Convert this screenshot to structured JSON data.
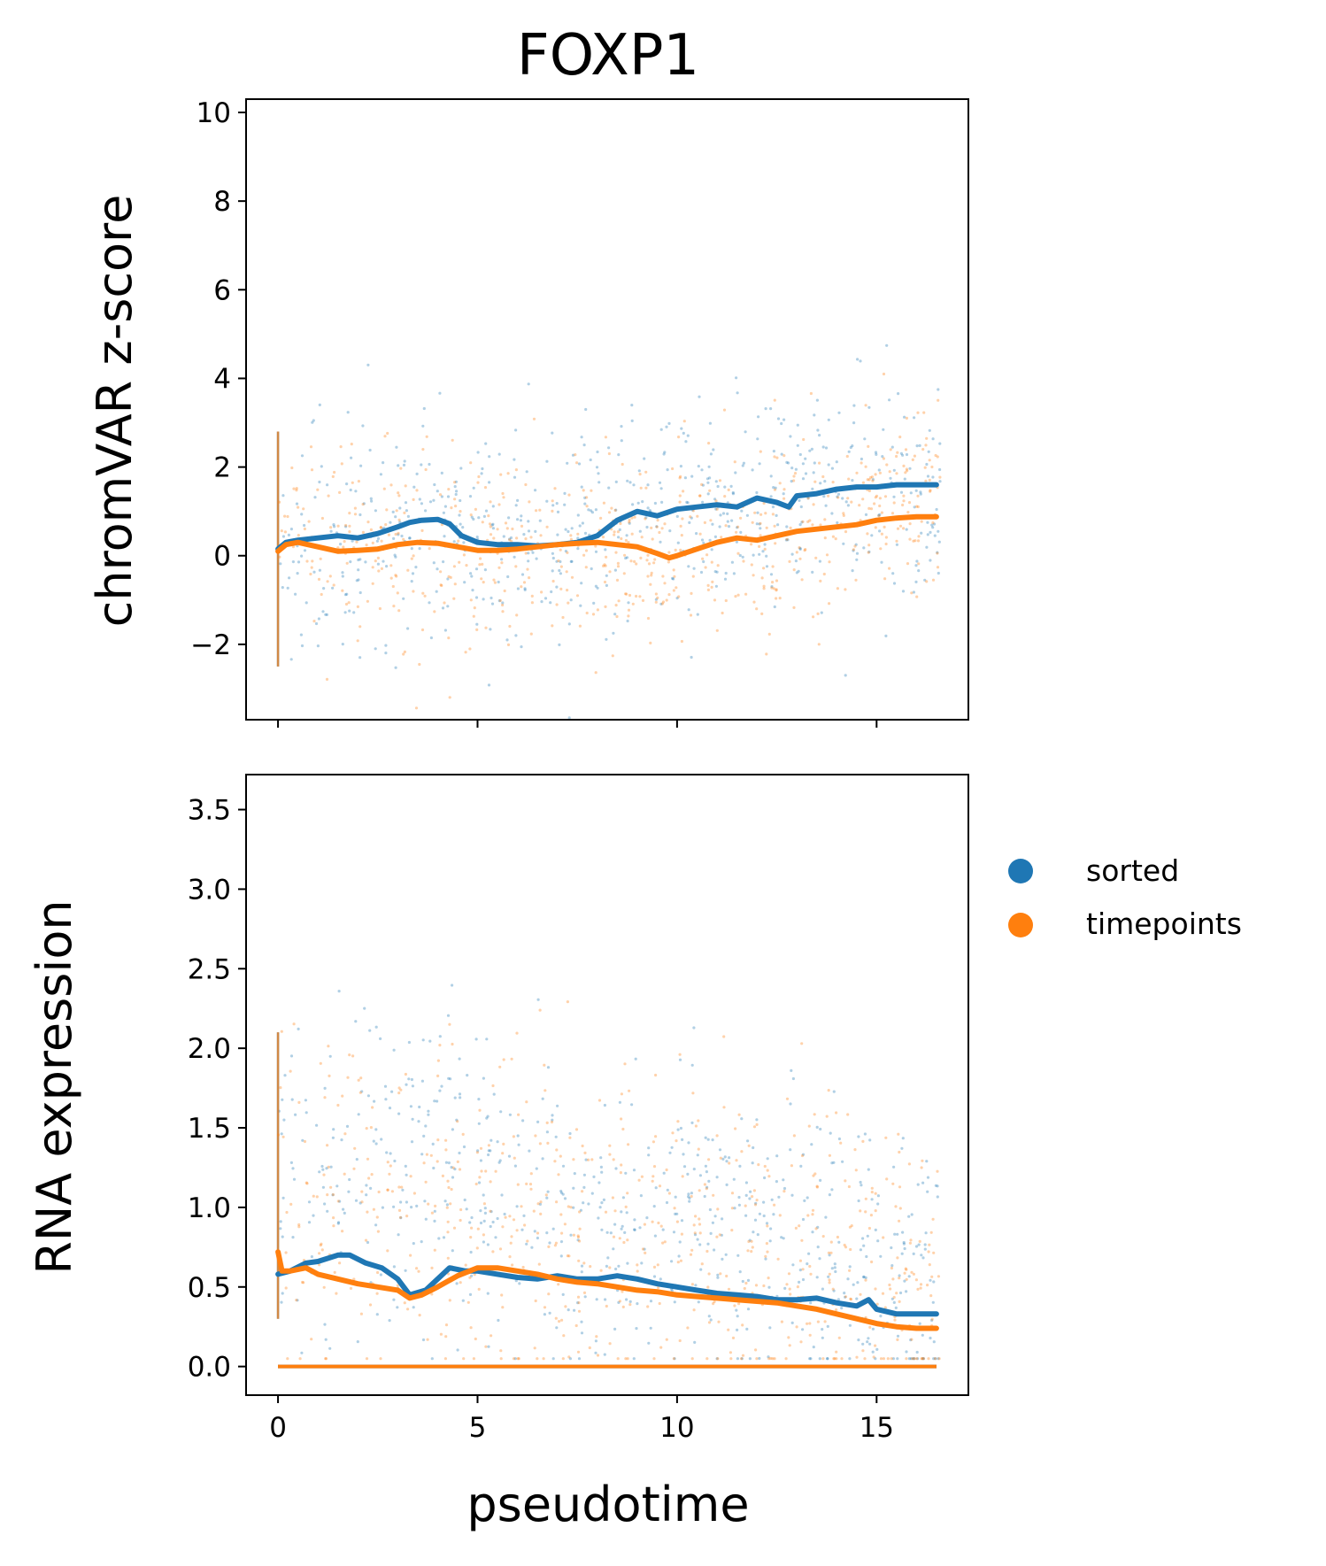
{
  "colors": {
    "sorted": "#1f77b4",
    "timepoints": "#ff7f0e"
  },
  "chart_data": [
    {
      "type": "scatter",
      "title": "FOXP1",
      "xlabel": "",
      "ylabel": "chromVAR z-score",
      "xlim": [
        -0.8,
        17.3
      ],
      "ylim": [
        -3.7,
        10.3
      ],
      "xticks": [
        0,
        5,
        10,
        15
      ],
      "xtick_labels_visible": false,
      "yticks": [
        -2,
        0,
        2,
        4,
        6,
        8,
        10
      ],
      "ytick_labels": [
        "−2",
        "0",
        "2",
        "4",
        "6",
        "8",
        "10"
      ],
      "series": [
        {
          "name": "sorted",
          "color": "#1f77b4",
          "scatter_trend": [
            [
              0,
              0.2
            ],
            [
              1,
              0.5
            ],
            [
              2,
              0.3
            ],
            [
              3,
              0.5
            ],
            [
              4,
              0.6
            ],
            [
              5,
              0.4
            ],
            [
              6,
              0.3
            ],
            [
              7,
              0.3
            ],
            [
              8,
              0.6
            ],
            [
              9,
              0.9
            ],
            [
              10,
              1.0
            ],
            [
              11,
              1.1
            ],
            [
              12,
              1.2
            ],
            [
              13,
              1.4
            ],
            [
              14,
              1.5
            ],
            [
              15,
              1.5
            ],
            [
              16.5,
              1.5
            ]
          ],
          "scatter_spread": 1.2,
          "trend_line": {
            "x": [
              0,
              0.2,
              0.5,
              1,
              1.5,
              2,
              2.5,
              3,
              3.3,
              3.6,
              4,
              4.3,
              4.6,
              5,
              5.5,
              6,
              6.5,
              7,
              7.5,
              8,
              8.5,
              9,
              9.5,
              10,
              10.5,
              11,
              11.5,
              12,
              12.5,
              12.8,
              13,
              13.5,
              14,
              14.5,
              15,
              15.5,
              16,
              16.5
            ],
            "y": [
              0.15,
              0.3,
              0.35,
              0.4,
              0.45,
              0.4,
              0.5,
              0.65,
              0.75,
              0.8,
              0.82,
              0.72,
              0.45,
              0.3,
              0.25,
              0.25,
              0.22,
              0.25,
              0.3,
              0.45,
              0.8,
              1.0,
              0.9,
              1.05,
              1.1,
              1.15,
              1.1,
              1.3,
              1.2,
              1.1,
              1.35,
              1.4,
              1.5,
              1.55,
              1.55,
              1.6,
              1.6,
              1.6
            ]
          }
        },
        {
          "name": "timepoints",
          "color": "#ff7f0e",
          "scatter_trend": [
            [
              0,
              0.2
            ],
            [
              1,
              0.2
            ],
            [
              2,
              0.1
            ],
            [
              3,
              0.2
            ],
            [
              4,
              0.2
            ],
            [
              5,
              0.1
            ],
            [
              6,
              0.2
            ],
            [
              7,
              0.2
            ],
            [
              8,
              0.2
            ],
            [
              9,
              0.1
            ],
            [
              10,
              0.1
            ],
            [
              11,
              0.3
            ],
            [
              12,
              0.4
            ],
            [
              13,
              0.5
            ],
            [
              14,
              0.7
            ],
            [
              15,
              0.9
            ],
            [
              16.5,
              0.9
            ]
          ],
          "scatter_spread": 1.1,
          "trend_line": {
            "x": [
              0,
              0.2,
              0.5,
              1,
              1.5,
              2,
              2.5,
              3,
              3.5,
              4,
              4.5,
              5,
              5.5,
              6,
              6.5,
              7,
              7.5,
              8,
              8.5,
              9,
              9.5,
              9.8,
              10,
              10.5,
              11,
              11.5,
              12,
              12.5,
              13,
              13.5,
              14,
              14.5,
              15,
              15.5,
              16,
              16.5
            ],
            "y": [
              0.1,
              0.25,
              0.3,
              0.2,
              0.1,
              0.12,
              0.15,
              0.25,
              0.3,
              0.28,
              0.2,
              0.12,
              0.12,
              0.15,
              0.2,
              0.25,
              0.28,
              0.3,
              0.25,
              0.2,
              0.05,
              -0.05,
              0.0,
              0.15,
              0.3,
              0.4,
              0.35,
              0.45,
              0.55,
              0.6,
              0.65,
              0.7,
              0.8,
              0.85,
              0.88,
              0.88
            ]
          }
        }
      ]
    },
    {
      "type": "scatter",
      "title": "",
      "xlabel": "pseudotime",
      "ylabel": "RNA expression",
      "xlim": [
        -0.8,
        17.3
      ],
      "ylim": [
        -0.18,
        3.72
      ],
      "xticks": [
        0,
        5,
        10,
        15
      ],
      "xtick_labels": [
        "0",
        "5",
        "10",
        "15"
      ],
      "yticks": [
        0.0,
        0.5,
        1.0,
        1.5,
        2.0,
        2.5,
        3.0,
        3.5
      ],
      "ytick_labels": [
        "0.0",
        "0.5",
        "1.0",
        "1.5",
        "2.0",
        "2.5",
        "3.0",
        "3.5"
      ],
      "legend": {
        "placement": "right, outside plot",
        "entries": [
          "sorted",
          "timepoints"
        ]
      },
      "series": [
        {
          "name": "sorted",
          "color": "#1f77b4",
          "scatter_trend": [
            [
              0,
              1.1
            ],
            [
              2,
              1.2
            ],
            [
              4,
              1.3
            ],
            [
              6,
              1.1
            ],
            [
              8,
              1.0
            ],
            [
              10,
              0.95
            ],
            [
              12,
              0.9
            ],
            [
              14,
              0.75
            ],
            [
              15,
              0.6
            ],
            [
              16.5,
              0.5
            ]
          ],
          "scatter_spread": 0.5,
          "zero_baseline": true,
          "trend_line": {
            "x": [
              0,
              0.3,
              0.7,
              1,
              1.5,
              1.8,
              2.2,
              2.6,
              3,
              3.3,
              3.7,
              4,
              4.3,
              4.7,
              5,
              5.5,
              6,
              6.5,
              7,
              7.5,
              8,
              8.5,
              9,
              9.5,
              10,
              10.5,
              11,
              11.5,
              12,
              12.5,
              13,
              13.5,
              14,
              14.5,
              14.8,
              15,
              15.5,
              16,
              16.5
            ],
            "y": [
              0.58,
              0.6,
              0.65,
              0.66,
              0.7,
              0.7,
              0.65,
              0.62,
              0.55,
              0.45,
              0.48,
              0.55,
              0.62,
              0.6,
              0.6,
              0.58,
              0.56,
              0.55,
              0.57,
              0.55,
              0.55,
              0.57,
              0.55,
              0.52,
              0.5,
              0.48,
              0.46,
              0.45,
              0.44,
              0.42,
              0.42,
              0.43,
              0.4,
              0.38,
              0.42,
              0.36,
              0.33,
              0.33,
              0.33
            ]
          }
        },
        {
          "name": "timepoints",
          "color": "#ff7f0e",
          "scatter_trend": [
            [
              0,
              1.0
            ],
            [
              2,
              0.9
            ],
            [
              4,
              1.0
            ],
            [
              6,
              0.9
            ],
            [
              8,
              0.85
            ],
            [
              10,
              0.85
            ],
            [
              12,
              0.8
            ],
            [
              14,
              0.7
            ],
            [
              15,
              0.55
            ],
            [
              16.5,
              0.4
            ]
          ],
          "scatter_spread": 0.5,
          "zero_baseline": true,
          "trend_line": {
            "x": [
              0,
              0.1,
              0.3,
              0.7,
              1,
              1.5,
              2,
              2.5,
              3,
              3.3,
              3.6,
              4,
              4.5,
              5,
              5.5,
              6,
              6.5,
              7,
              7.5,
              8,
              8.5,
              9,
              9.5,
              10,
              10.5,
              11,
              11.5,
              12,
              12.5,
              13,
              13.5,
              14,
              14.5,
              15,
              15.5,
              16,
              16.5
            ],
            "y": [
              0.72,
              0.6,
              0.6,
              0.62,
              0.58,
              0.55,
              0.52,
              0.5,
              0.48,
              0.43,
              0.45,
              0.5,
              0.57,
              0.62,
              0.62,
              0.6,
              0.58,
              0.55,
              0.53,
              0.52,
              0.5,
              0.48,
              0.47,
              0.45,
              0.44,
              0.43,
              0.42,
              0.41,
              0.4,
              0.38,
              0.36,
              0.33,
              0.3,
              0.27,
              0.25,
              0.24,
              0.24
            ]
          }
        }
      ]
    }
  ]
}
